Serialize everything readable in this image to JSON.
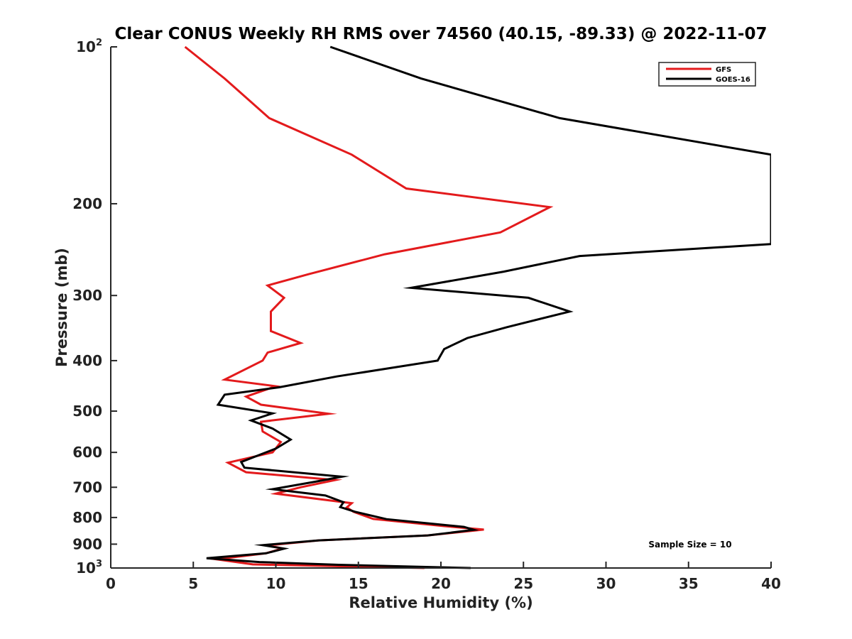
{
  "chart_data": {
    "type": "line",
    "title": "Clear CONUS Weekly RH RMS over 74560 (40.15, -89.33) @ 2022-11-07",
    "xlabel": "Relative Humidity (%)",
    "ylabel": "Pressure (mb)",
    "xlim": [
      0,
      40
    ],
    "ylim": [
      100,
      1000
    ],
    "yscale": "log",
    "y_reversed": false,
    "grid": false,
    "legend_placement": "top-right",
    "xticks": [
      "0",
      "5",
      "10",
      "15",
      "20",
      "25",
      "30",
      "35",
      "40"
    ],
    "yticks": [
      {
        "value": 100,
        "base": "10",
        "exp": "2"
      },
      {
        "value": 200,
        "label": "200"
      },
      {
        "value": 300,
        "label": "300"
      },
      {
        "value": 400,
        "label": "400"
      },
      {
        "value": 500,
        "label": "500"
      },
      {
        "value": 600,
        "label": "600"
      },
      {
        "value": 700,
        "label": "700"
      },
      {
        "value": 800,
        "label": "800"
      },
      {
        "value": 900,
        "label": "900"
      },
      {
        "value": 1000,
        "base": "10",
        "exp": "3"
      }
    ],
    "annotation": "Sample Size = 10",
    "series": [
      {
        "name": "GFS",
        "color": "#e31a1c",
        "points": [
          [
            4.5,
            100
          ],
          [
            6.9,
            115
          ],
          [
            9.6,
            137
          ],
          [
            14.6,
            161
          ],
          [
            17.9,
            187
          ],
          [
            26.6,
            203
          ],
          [
            23.6,
            227
          ],
          [
            16.6,
            250
          ],
          [
            12.0,
            273
          ],
          [
            9.5,
            287
          ],
          [
            10.5,
            303
          ],
          [
            9.7,
            322
          ],
          [
            9.7,
            351
          ],
          [
            11.5,
            370
          ],
          [
            9.5,
            386
          ],
          [
            9.2,
            400
          ],
          [
            6.9,
            435
          ],
          [
            10.0,
            448
          ],
          [
            8.2,
            469
          ],
          [
            9.1,
            486
          ],
          [
            13.2,
            506
          ],
          [
            9.1,
            524
          ],
          [
            9.2,
            547
          ],
          [
            10.3,
            573
          ],
          [
            9.8,
            600
          ],
          [
            7.1,
            628
          ],
          [
            8.2,
            655
          ],
          [
            13.6,
            678
          ],
          [
            11.5,
            700
          ],
          [
            10.0,
            720
          ],
          [
            14.6,
            751
          ],
          [
            14.3,
            765
          ],
          [
            14.7,
            780
          ],
          [
            15.9,
            805
          ],
          [
            20.2,
            831
          ],
          [
            22.6,
            844
          ],
          [
            19.2,
            866
          ],
          [
            12.6,
            885
          ],
          [
            9.5,
            905
          ],
          [
            10.4,
            917
          ],
          [
            9.4,
            937
          ],
          [
            6.4,
            962
          ],
          [
            8.6,
            984
          ],
          [
            19.0,
            1000
          ]
        ]
      },
      {
        "name": "GOES-16",
        "color": "#000000",
        "points": [
          [
            13.3,
            100
          ],
          [
            18.8,
            115
          ],
          [
            27.2,
            137
          ],
          [
            40.0,
            161
          ],
          [
            40.0,
            239
          ],
          [
            28.4,
            252
          ],
          [
            23.8,
            270
          ],
          [
            18.2,
            290
          ],
          [
            25.3,
            303
          ],
          [
            27.8,
            322
          ],
          [
            24.0,
            345
          ],
          [
            21.6,
            362
          ],
          [
            20.2,
            380
          ],
          [
            19.8,
            400
          ],
          [
            13.7,
            429
          ],
          [
            10.2,
            450
          ],
          [
            6.9,
            465
          ],
          [
            6.5,
            486
          ],
          [
            9.8,
            505
          ],
          [
            8.5,
            521
          ],
          [
            9.8,
            540
          ],
          [
            10.9,
            567
          ],
          [
            10.0,
            590
          ],
          [
            7.9,
            626
          ],
          [
            8.1,
            642
          ],
          [
            14.0,
            668
          ],
          [
            12.5,
            682
          ],
          [
            9.8,
            706
          ],
          [
            13.0,
            726
          ],
          [
            14.1,
            748
          ],
          [
            13.9,
            764
          ],
          [
            14.8,
            780
          ],
          [
            16.7,
            806
          ],
          [
            21.4,
            834
          ],
          [
            22.0,
            845
          ],
          [
            19.2,
            866
          ],
          [
            12.6,
            885
          ],
          [
            9.2,
            904
          ],
          [
            10.5,
            918
          ],
          [
            9.4,
            937
          ],
          [
            5.8,
            958
          ],
          [
            9.0,
            974
          ],
          [
            13.8,
            986
          ],
          [
            21.8,
            1000
          ]
        ]
      }
    ]
  }
}
